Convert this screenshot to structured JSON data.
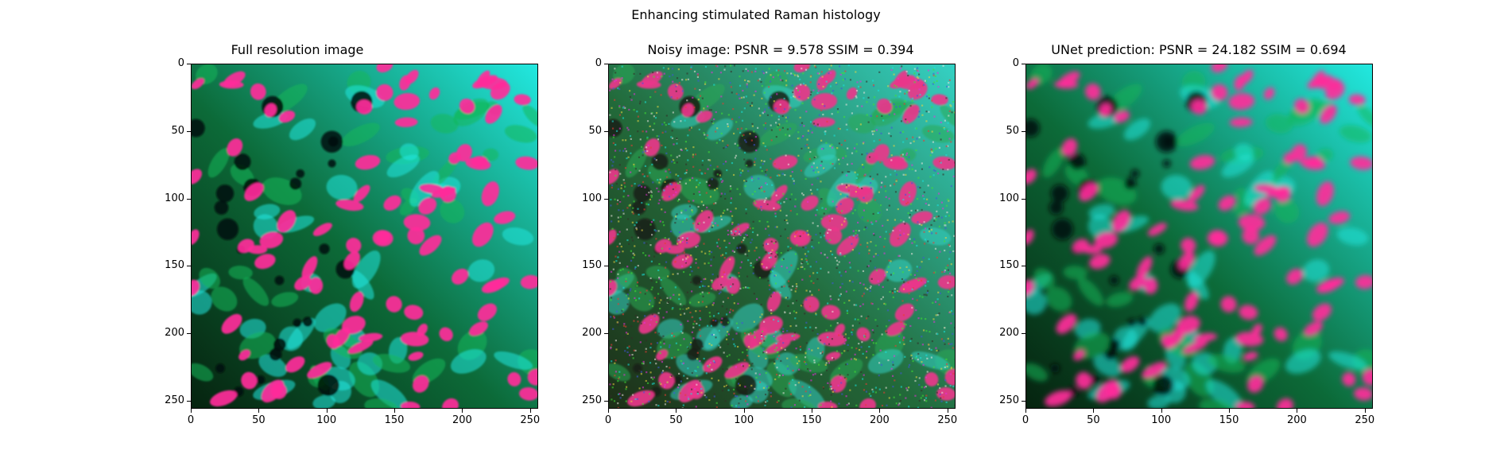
{
  "figure": {
    "suptitle": "Enhancing stimulated Raman histology",
    "panels": [
      {
        "title": "Full resolution image",
        "variant": "clean"
      },
      {
        "title": "Noisy image: PSNR = 9.578 SSIM = 0.394",
        "variant": "noisy"
      },
      {
        "title": "UNet prediction: PSNR = 24.182 SSIM = 0.694",
        "variant": "smooth"
      }
    ],
    "axes": {
      "x_ticks": [
        "0",
        "50",
        "100",
        "150",
        "200",
        "250"
      ],
      "y_ticks": [
        "0",
        "50",
        "100",
        "150",
        "200",
        "250"
      ],
      "range": [
        0,
        256
      ]
    },
    "colors": {
      "background_dark": "#06230f",
      "tissue_green": "#14b85a",
      "cytoplasm_cyan": "#22e8e0",
      "nucleus_magenta": "#ff2a9a"
    }
  }
}
